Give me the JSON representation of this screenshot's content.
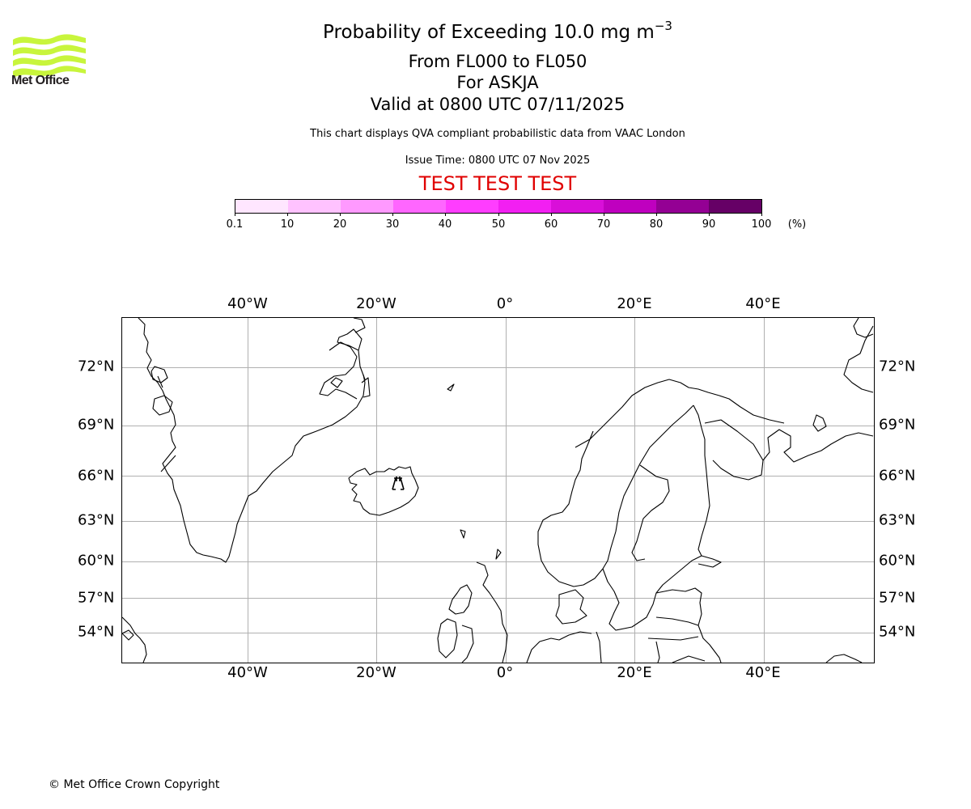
{
  "header": {
    "logo_text": "Met Office",
    "title_prefix": "Probability of Exceeding 10.0 mg m",
    "title_superscript": "−3",
    "levels": "From FL000 to FL050",
    "volcano": "For ASKJA",
    "valid": "Valid at 0800 UTC 07/11/2025",
    "description": "This chart displays QVA compliant probabilistic data from VAAC London",
    "issue_time": "Issue Time: 0800 UTC 07 Nov 2025",
    "test_banner": "TEST TEST TEST"
  },
  "colorbar": {
    "unit": "(%)",
    "ticks": [
      "0.1",
      "10",
      "20",
      "30",
      "40",
      "50",
      "60",
      "70",
      "80",
      "90",
      "100"
    ],
    "colors": [
      "#ffe6ff",
      "#ffc2ff",
      "#ff99ff",
      "#ff66ff",
      "#ff3dff",
      "#f21ff2",
      "#d90fd9",
      "#bf00bf",
      "#940094",
      "#660066"
    ]
  },
  "map": {
    "lon_labels": [
      "40°W",
      "20°W",
      "0°",
      "20°E",
      "40°E"
    ],
    "lat_labels": [
      "72°N",
      "69°N",
      "66°N",
      "63°N",
      "60°N",
      "57°N",
      "54°N"
    ],
    "volcano_marker": "volcano-icon",
    "volcano_name": "ASKJA"
  },
  "chart_data": {
    "type": "heatmap",
    "title": "Probability of Exceeding 10.0 mg m^-3",
    "subtitle": [
      "From FL000 to FL050",
      "For ASKJA",
      "Valid at 0800 UTC 07/11/2025"
    ],
    "colorbar_label": "(%)",
    "colorbar_bounds": [
      0.1,
      10,
      20,
      30,
      40,
      50,
      60,
      70,
      80,
      90,
      100
    ],
    "x_ticks": [
      "40°W",
      "20°W",
      "0°",
      "20°E",
      "40°E"
    ],
    "y_ticks": [
      "72°N",
      "69°N",
      "66°N",
      "63°N",
      "60°N",
      "57°N",
      "54°N"
    ],
    "grid": true,
    "values": [],
    "note": "No probability contours drawn; only volcano marker at Askja, Iceland"
  },
  "footer": {
    "copyright": "© Met Office Crown Copyright"
  }
}
